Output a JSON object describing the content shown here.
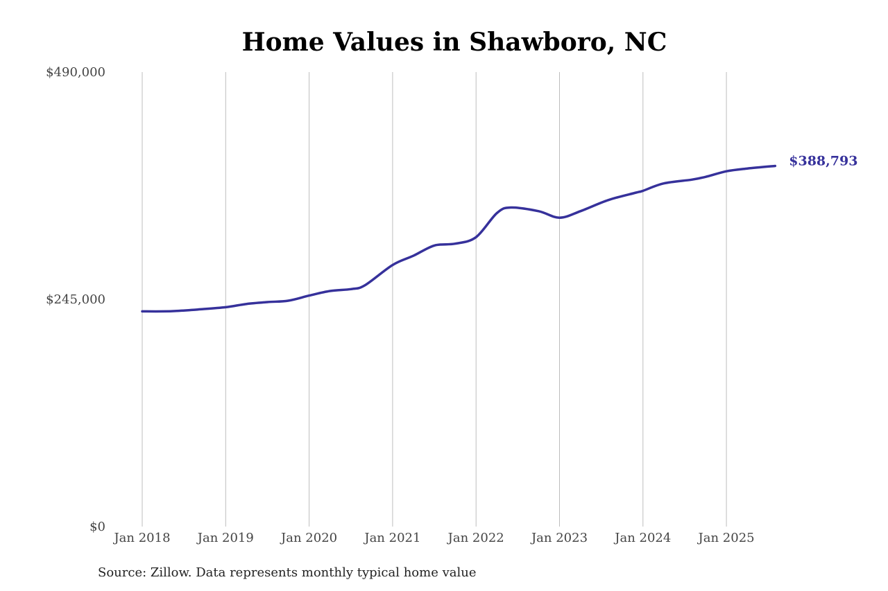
{
  "chart_data": {
    "type": "line",
    "title": "Home Values in Shawboro, NC",
    "xlabel": "",
    "ylabel": "",
    "ylim": [
      0,
      490000
    ],
    "y_ticks": [
      0,
      245000,
      490000
    ],
    "y_tick_labels": [
      "$0",
      "$245,000",
      "$490,000"
    ],
    "x_range": [
      "2018-01",
      "2025-08"
    ],
    "x_ticks": [
      "2018-01",
      "2019-01",
      "2020-01",
      "2021-01",
      "2022-01",
      "2023-01",
      "2024-01",
      "2025-01"
    ],
    "x_tick_labels": [
      "Jan 2018",
      "Jan 2019",
      "Jan 2020",
      "Jan 2021",
      "Jan 2022",
      "Jan 2023",
      "Jan 2024",
      "Jan 2025"
    ],
    "grid": "vertical lines at x ticks",
    "legend": "none",
    "line_color": "#36319b",
    "end_label": "$388,793",
    "series": [
      {
        "x": [
          "2018-01",
          "2018-04",
          "2018-06",
          "2018-09",
          "2019-01",
          "2019-04",
          "2019-07",
          "2019-10",
          "2020-01",
          "2020-04",
          "2020-07",
          "2020-09",
          "2021-01",
          "2021-04",
          "2021-07",
          "2021-10",
          "2022-01",
          "2022-04",
          "2022-06",
          "2022-10",
          "2023-01",
          "2023-04",
          "2023-08",
          "2023-12",
          "2024-01",
          "2024-04",
          "2024-08",
          "2024-10",
          "2025-01",
          "2025-04",
          "2025-08"
        ],
        "values": [
          232000,
          232000,
          232500,
          234000,
          236500,
          240000,
          242000,
          243500,
          249000,
          254000,
          256000,
          260000,
          282000,
          292000,
          303000,
          305000,
          312000,
          338000,
          344000,
          340000,
          333000,
          340000,
          352000,
          360000,
          362000,
          370000,
          374000,
          377000,
          383000,
          386000,
          388793
        ]
      }
    ]
  },
  "source_note": "Source: Zillow. Data represents monthly typical home value"
}
